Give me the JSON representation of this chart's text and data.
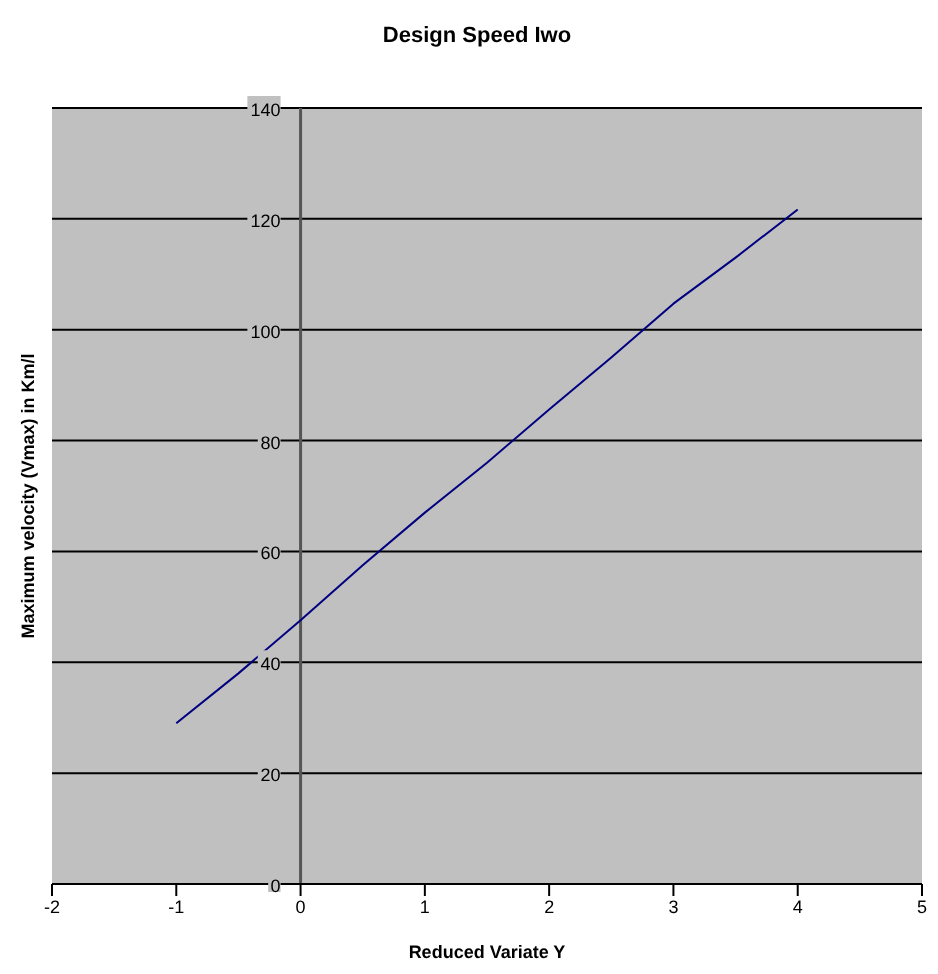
{
  "chart_data": {
    "type": "line",
    "title": "Design Speed Iwo",
    "xlabel": "Reduced Variate Y",
    "ylabel": "Maximum velocity (Vmax) in Km/l",
    "x": [
      -1,
      -0.5,
      0,
      0.5,
      1,
      1.5,
      2,
      2.5,
      3,
      3.5,
      4
    ],
    "series": [
      {
        "color": "#000080",
        "values": [
          29,
          38,
          47.6,
          57.5,
          67,
          76,
          85.6,
          95,
          104.7,
          113,
          121.7
        ]
      }
    ],
    "xlim": [
      -2,
      5
    ],
    "xticks": [
      -2,
      -1,
      0,
      1,
      2,
      3,
      4,
      5
    ],
    "ylim": [
      0,
      140
    ],
    "yticks": [
      0,
      20,
      40,
      60,
      80,
      100,
      120,
      140
    ],
    "grid": "y",
    "marker": "none",
    "line_style": "solid"
  }
}
